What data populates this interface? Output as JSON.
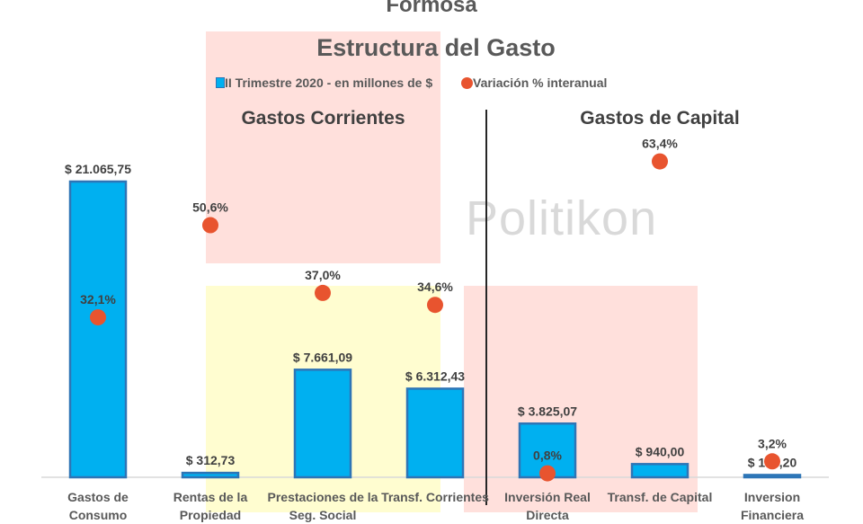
{
  "title": "Formosa",
  "chart_data": {
    "type": "bar",
    "title": "Estructura del Gasto",
    "categories": [
      "Gastos de Consumo",
      "Rentas de la Propiedad",
      "Prestaciones de la Seg. Social",
      "Transf. Corrientes",
      "Inversión Real Directa",
      "Transf. de Capital",
      "Inversion Financiera"
    ],
    "series": [
      {
        "name": "II Trimestre 2020 - en millones de $",
        "type": "bar",
        "color": "#00B0F0",
        "values": [
          21065.75,
          312.73,
          7661.09,
          6312.43,
          3825.07,
          940.0,
          164.2
        ],
        "labels": [
          "$ 21.065,75",
          "$ 312,73",
          "$ 7.661,09",
          "$ 6.312,43",
          "$ 3.825,07",
          "$ 940,00",
          "$ 164,20"
        ]
      },
      {
        "name": "Variación % interanual",
        "type": "scatter",
        "color": "#E8542F",
        "values": [
          32.1,
          50.6,
          37.0,
          34.6,
          0.8,
          63.4,
          3.2
        ],
        "labels": [
          "32,1%",
          "50,6%",
          "37,0%",
          "34,6%",
          "0,8%",
          "63,4%",
          "3,2%"
        ]
      }
    ],
    "legend": "top",
    "grid": false
  },
  "groups": {
    "current": "Gastos Corrientes",
    "capital": "Gastos de Capital"
  },
  "watermark": "Politikon"
}
